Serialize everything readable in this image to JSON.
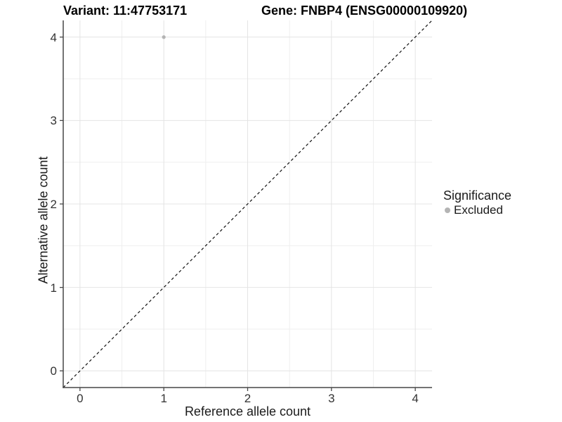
{
  "title": {
    "variant": "Variant: 11:47753171",
    "gene": "Gene: FNBP4 (ENSG00000109920)"
  },
  "axes": {
    "x_label": "Reference allele count",
    "y_label": "Alternative allele count"
  },
  "legend": {
    "title": "Significance",
    "items": [
      {
        "label": "Excluded",
        "color": "#b4b4b4"
      }
    ]
  },
  "colors": {
    "background": "#ffffff",
    "major_grid": "#e4e4e4",
    "minor_grid": "#efefef",
    "axis_line": "#474747",
    "tick_mark": "#474747",
    "reference_line": "#111111",
    "point": "#b4b4b4"
  },
  "chart_data": {
    "type": "scatter",
    "title": "Variant: 11:47753171   Gene: FNBP4 (ENSG00000109920)",
    "xlabel": "Reference allele count",
    "ylabel": "Alternative allele count",
    "xlim": [
      -0.2,
      4.2
    ],
    "ylim": [
      -0.2,
      4.2
    ],
    "x_ticks": [
      0,
      1,
      2,
      3,
      4
    ],
    "y_ticks": [
      0,
      1,
      2,
      3,
      4
    ],
    "minor_grid_step": 0.5,
    "grid": true,
    "legend_position": "right",
    "series": [
      {
        "name": "Excluded",
        "color": "#b4b4b4",
        "point_radius": 2.6,
        "points": [
          {
            "x": 1,
            "y": 4
          }
        ]
      }
    ],
    "reference_line": {
      "type": "identity",
      "style": "dashed",
      "from": [
        -0.2,
        -0.2
      ],
      "to": [
        4.2,
        4.2
      ],
      "color": "#111111"
    }
  }
}
